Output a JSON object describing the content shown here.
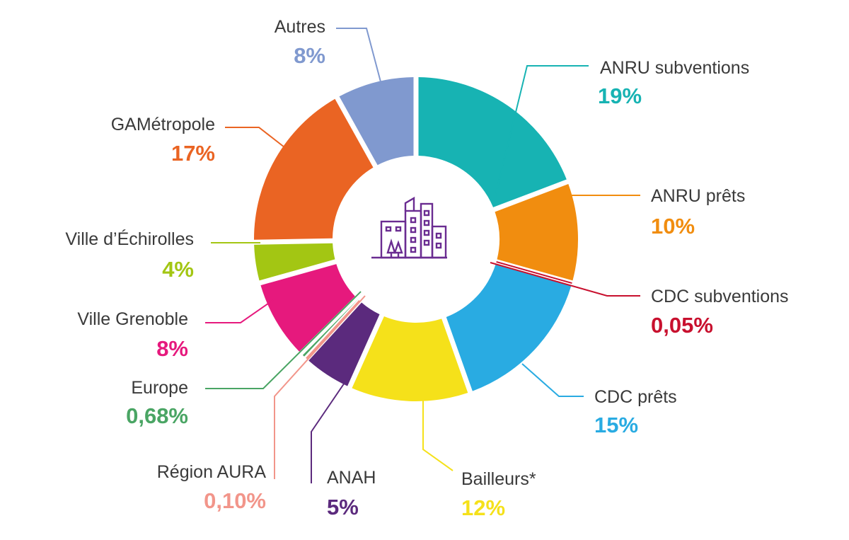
{
  "chart_data": {
    "type": "pie",
    "variant": "donut",
    "slices": [
      {
        "name": "ANRU subventions",
        "value": 19,
        "label": "19%",
        "color": "#17b3b3"
      },
      {
        "name": "ANRU prêts",
        "value": 10,
        "label": "10%",
        "color": "#f18d0f"
      },
      {
        "name": "CDC subventions",
        "value": 0.05,
        "label": "0,05%",
        "color": "#c8102e"
      },
      {
        "name": "CDC prêts",
        "value": 15,
        "label": "15%",
        "color": "#29abe2"
      },
      {
        "name": "Bailleurs*",
        "value": 12,
        "label": "12%",
        "color": "#f5e11a"
      },
      {
        "name": "ANAH",
        "value": 5,
        "label": "5%",
        "color": "#5b2a7d"
      },
      {
        "name": "Région AURA",
        "value": 0.1,
        "label": "0,10%",
        "color": "#f2958a"
      },
      {
        "name": "Europe",
        "value": 0.68,
        "label": "0,68%",
        "color": "#4aa564"
      },
      {
        "name": "Ville Grenoble",
        "value": 8,
        "label": "8%",
        "color": "#e6197d"
      },
      {
        "name": "Ville d’Échirolles",
        "value": 4,
        "label": "4%",
        "color": "#a3c613"
      },
      {
        "name": "GAMétropole",
        "value": 17,
        "label": "17%",
        "color": "#ea6423"
      },
      {
        "name": "Autres",
        "value": 8,
        "label": "8%",
        "color": "#8099cf"
      }
    ],
    "center_icon": "city-buildings-icon",
    "center_icon_color": "#6a2c91"
  }
}
